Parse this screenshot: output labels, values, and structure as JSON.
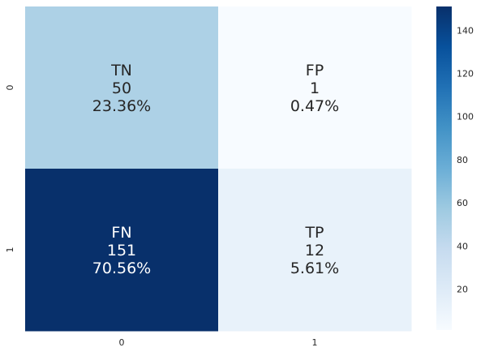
{
  "chart_data": {
    "type": "heatmap",
    "title": "",
    "xlabel": "",
    "ylabel": "",
    "x_tick_labels": [
      "0",
      "1"
    ],
    "y_tick_labels": [
      "0",
      "1"
    ],
    "values": [
      [
        50,
        1
      ],
      [
        151,
        12
      ]
    ],
    "cell_labels": [
      [
        {
          "name": "TN",
          "count": "50",
          "percent": "23.36%"
        },
        {
          "name": "FP",
          "count": "1",
          "percent": "0.47%"
        }
      ],
      [
        {
          "name": "FN",
          "count": "151",
          "percent": "70.56%"
        },
        {
          "name": "TP",
          "count": "12",
          "percent": "5.61%"
        }
      ]
    ],
    "colormap": "Blues",
    "colorbar": {
      "range": [
        1,
        151
      ],
      "tick_labels": [
        "20",
        "40",
        "60",
        "80",
        "100",
        "120",
        "140"
      ]
    }
  }
}
